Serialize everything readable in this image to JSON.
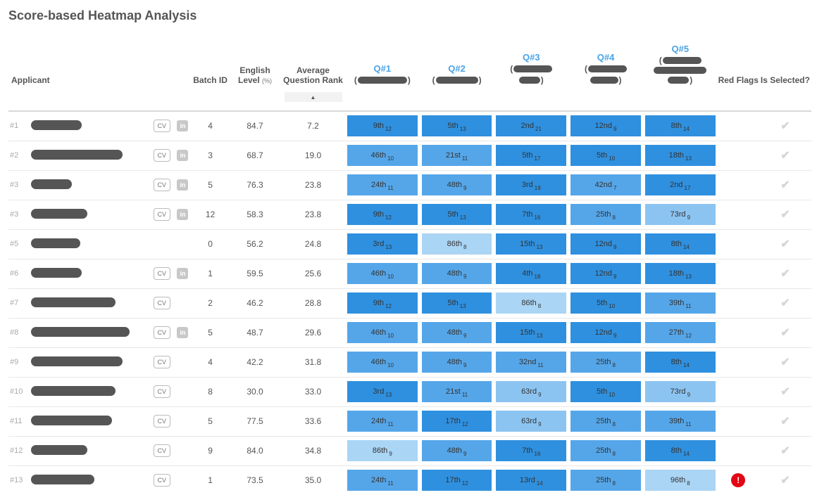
{
  "title": "Score-based Heatmap Analysis",
  "columns": {
    "applicant": "Applicant",
    "batch": "Batch ID",
    "english": "English Level",
    "english_unit": "(%)",
    "avg_rank": "Average Question Rank",
    "red_flags": "Red Flags",
    "is_selected": "Is Selected?"
  },
  "questions": [
    {
      "label": "Q#1",
      "bar_lines": [
        70
      ],
      "indent_first": false
    },
    {
      "label": "Q#2",
      "bar_lines": [
        60
      ],
      "indent_first": false
    },
    {
      "label": "Q#3",
      "bar_lines": [
        55,
        30
      ],
      "indent_first": false
    },
    {
      "label": "Q#4",
      "bar_lines": [
        55,
        40
      ],
      "indent_first": false
    },
    {
      "label": "Q#5",
      "bar_lines": [
        55,
        75,
        30
      ],
      "indent_first": false
    }
  ],
  "heatmap_colors": {
    "dark": "#2f90df",
    "mid": "#55a6e9",
    "light": "#8cc4f1",
    "vlight": "#aad5f5"
  },
  "rows": [
    {
      "rank": "#1",
      "name_w": 72,
      "cv": true,
      "li": true,
      "batch": "4",
      "english": "84.7",
      "avg_rank": "7.2",
      "q": [
        {
          "t": "9th",
          "s": "12",
          "c": "dark"
        },
        {
          "t": "5th",
          "s": "13",
          "c": "dark"
        },
        {
          "t": "2nd",
          "s": "21",
          "c": "dark"
        },
        {
          "t": "12nd",
          "s": "9",
          "c": "dark"
        },
        {
          "t": "8th",
          "s": "14",
          "c": "dark"
        }
      ],
      "red_flag": false,
      "selected": true
    },
    {
      "rank": "#2",
      "name_w": 130,
      "cv": true,
      "li": true,
      "batch": "3",
      "english": "68.7",
      "avg_rank": "19.0",
      "q": [
        {
          "t": "46th",
          "s": "10",
          "c": "mid"
        },
        {
          "t": "21st",
          "s": "11",
          "c": "mid"
        },
        {
          "t": "5th",
          "s": "17",
          "c": "dark"
        },
        {
          "t": "5th",
          "s": "10",
          "c": "dark"
        },
        {
          "t": "18th",
          "s": "13",
          "c": "dark"
        }
      ],
      "red_flag": false,
      "selected": true
    },
    {
      "rank": "#3",
      "name_w": 58,
      "cv": true,
      "li": true,
      "batch": "5",
      "english": "76.3",
      "avg_rank": "23.8",
      "q": [
        {
          "t": "24th",
          "s": "11",
          "c": "mid"
        },
        {
          "t": "48th",
          "s": "9",
          "c": "mid"
        },
        {
          "t": "3rd",
          "s": "19",
          "c": "dark"
        },
        {
          "t": "42nd",
          "s": "7",
          "c": "mid"
        },
        {
          "t": "2nd",
          "s": "17",
          "c": "dark"
        }
      ],
      "red_flag": false,
      "selected": true
    },
    {
      "rank": "#3",
      "name_w": 80,
      "cv": true,
      "li": true,
      "batch": "12",
      "english": "58.3",
      "avg_rank": "23.8",
      "q": [
        {
          "t": "9th",
          "s": "12",
          "c": "dark"
        },
        {
          "t": "5th",
          "s": "13",
          "c": "dark"
        },
        {
          "t": "7th",
          "s": "16",
          "c": "dark"
        },
        {
          "t": "25th",
          "s": "8",
          "c": "mid"
        },
        {
          "t": "73rd",
          "s": "9",
          "c": "light"
        }
      ],
      "red_flag": false,
      "selected": true
    },
    {
      "rank": "#5",
      "name_w": 70,
      "cv": false,
      "li": false,
      "batch": "0",
      "english": "56.2",
      "avg_rank": "24.8",
      "q": [
        {
          "t": "3rd",
          "s": "13",
          "c": "dark"
        },
        {
          "t": "86th",
          "s": "8",
          "c": "vlight"
        },
        {
          "t": "15th",
          "s": "13",
          "c": "dark"
        },
        {
          "t": "12nd",
          "s": "9",
          "c": "dark"
        },
        {
          "t": "8th",
          "s": "14",
          "c": "dark"
        }
      ],
      "red_flag": false,
      "selected": true
    },
    {
      "rank": "#6",
      "name_w": 72,
      "cv": true,
      "li": true,
      "batch": "1",
      "english": "59.5",
      "avg_rank": "25.6",
      "q": [
        {
          "t": "46th",
          "s": "10",
          "c": "mid"
        },
        {
          "t": "48th",
          "s": "9",
          "c": "mid"
        },
        {
          "t": "4th",
          "s": "18",
          "c": "dark"
        },
        {
          "t": "12nd",
          "s": "9",
          "c": "dark"
        },
        {
          "t": "18th",
          "s": "13",
          "c": "dark"
        }
      ],
      "red_flag": false,
      "selected": true
    },
    {
      "rank": "#7",
      "name_w": 120,
      "cv": true,
      "li": false,
      "batch": "2",
      "english": "46.2",
      "avg_rank": "28.8",
      "q": [
        {
          "t": "9th",
          "s": "12",
          "c": "dark"
        },
        {
          "t": "5th",
          "s": "13",
          "c": "dark"
        },
        {
          "t": "86th",
          "s": "8",
          "c": "vlight"
        },
        {
          "t": "5th",
          "s": "10",
          "c": "dark"
        },
        {
          "t": "39th",
          "s": "11",
          "c": "mid"
        }
      ],
      "red_flag": false,
      "selected": true
    },
    {
      "rank": "#8",
      "name_w": 140,
      "cv": true,
      "li": true,
      "batch": "5",
      "english": "48.7",
      "avg_rank": "29.6",
      "q": [
        {
          "t": "46th",
          "s": "10",
          "c": "mid"
        },
        {
          "t": "48th",
          "s": "9",
          "c": "mid"
        },
        {
          "t": "15th",
          "s": "13",
          "c": "dark"
        },
        {
          "t": "12nd",
          "s": "9",
          "c": "dark"
        },
        {
          "t": "27th",
          "s": "12",
          "c": "mid"
        }
      ],
      "red_flag": false,
      "selected": true
    },
    {
      "rank": "#9",
      "name_w": 130,
      "cv": true,
      "li": false,
      "batch": "4",
      "english": "42.2",
      "avg_rank": "31.8",
      "q": [
        {
          "t": "46th",
          "s": "10",
          "c": "mid"
        },
        {
          "t": "48th",
          "s": "9",
          "c": "mid"
        },
        {
          "t": "32nd",
          "s": "11",
          "c": "mid"
        },
        {
          "t": "25th",
          "s": "8",
          "c": "mid"
        },
        {
          "t": "8th",
          "s": "14",
          "c": "dark"
        }
      ],
      "red_flag": false,
      "selected": true
    },
    {
      "rank": "#10",
      "name_w": 120,
      "cv": true,
      "li": false,
      "batch": "8",
      "english": "30.0",
      "avg_rank": "33.0",
      "q": [
        {
          "t": "3rd",
          "s": "13",
          "c": "dark"
        },
        {
          "t": "21st",
          "s": "11",
          "c": "mid"
        },
        {
          "t": "63rd",
          "s": "9",
          "c": "light"
        },
        {
          "t": "5th",
          "s": "10",
          "c": "dark"
        },
        {
          "t": "73rd",
          "s": "9",
          "c": "light"
        }
      ],
      "red_flag": false,
      "selected": true
    },
    {
      "rank": "#11",
      "name_w": 115,
      "cv": true,
      "li": false,
      "batch": "5",
      "english": "77.5",
      "avg_rank": "33.6",
      "q": [
        {
          "t": "24th",
          "s": "11",
          "c": "mid"
        },
        {
          "t": "17th",
          "s": "12",
          "c": "dark"
        },
        {
          "t": "63rd",
          "s": "9",
          "c": "light"
        },
        {
          "t": "25th",
          "s": "8",
          "c": "mid"
        },
        {
          "t": "39th",
          "s": "11",
          "c": "mid"
        }
      ],
      "red_flag": false,
      "selected": true
    },
    {
      "rank": "#12",
      "name_w": 80,
      "cv": true,
      "li": false,
      "batch": "9",
      "english": "84.0",
      "avg_rank": "34.8",
      "q": [
        {
          "t": "86th",
          "s": "9",
          "c": "vlight"
        },
        {
          "t": "48th",
          "s": "9",
          "c": "mid"
        },
        {
          "t": "7th",
          "s": "16",
          "c": "dark"
        },
        {
          "t": "25th",
          "s": "8",
          "c": "mid"
        },
        {
          "t": "8th",
          "s": "14",
          "c": "dark"
        }
      ],
      "red_flag": false,
      "selected": true
    },
    {
      "rank": "#13",
      "name_w": 90,
      "cv": true,
      "li": false,
      "batch": "1",
      "english": "73.5",
      "avg_rank": "35.0",
      "q": [
        {
          "t": "24th",
          "s": "11",
          "c": "mid"
        },
        {
          "t": "17th",
          "s": "12",
          "c": "dark"
        },
        {
          "t": "13rd",
          "s": "14",
          "c": "dark"
        },
        {
          "t": "25th",
          "s": "8",
          "c": "mid"
        },
        {
          "t": "96th",
          "s": "8",
          "c": "vlight"
        }
      ],
      "red_flag": true,
      "selected": true
    }
  ]
}
